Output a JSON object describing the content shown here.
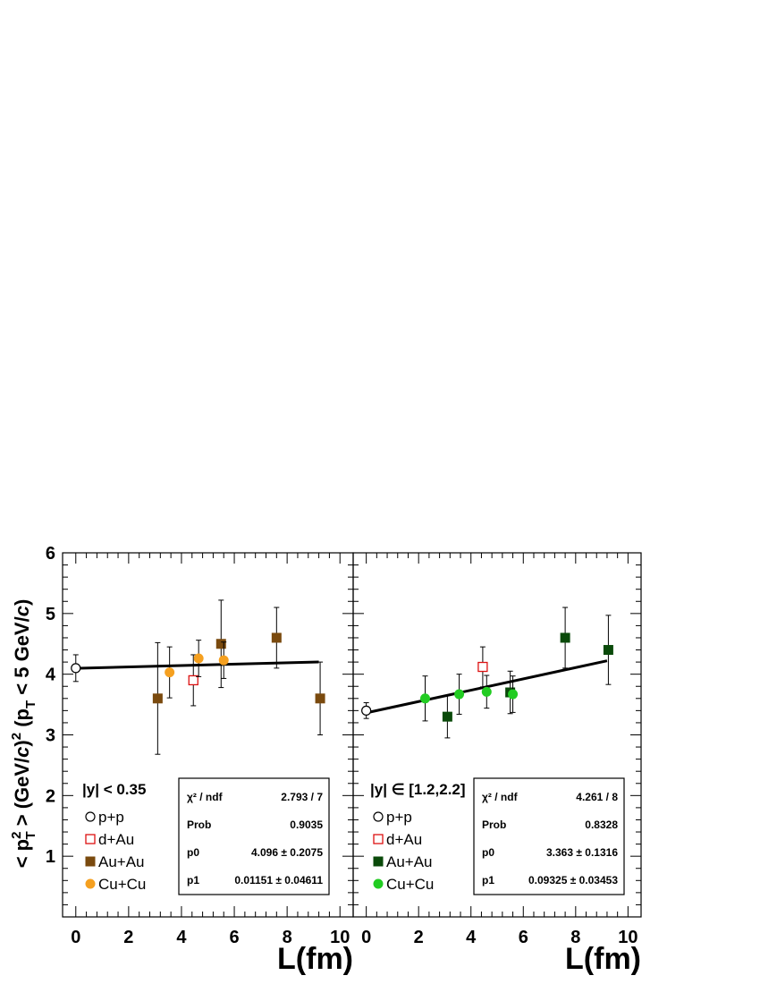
{
  "chart_data": [
    {
      "type": "scatter",
      "panel": "left",
      "x_label": "L(fm)",
      "y_label": "< p_T^2 > (GeV/c)^2 (p_T < 5 GeV/c)",
      "y_label_parts": {
        "lt": "< p",
        "sup1": "2",
        "sub1": "T",
        "mid": " > (GeV/",
        "c1": "c",
        "close": ")",
        "sup2": "2",
        "open": " (p",
        "sub2": "T",
        "rest": " < 5 GeV/",
        "c2": "c",
        "end": ")"
      },
      "x_ticks": [
        "0",
        "2",
        "4",
        "6",
        "8",
        "10"
      ],
      "y_ticks": [
        "1",
        "2",
        "3",
        "4",
        "5",
        "6"
      ],
      "xlim": [
        -0.5,
        10.5
      ],
      "ylim": [
        0,
        6
      ],
      "legend": {
        "header": "|y| < 0.35",
        "entries": [
          {
            "key": "pp",
            "label": "p+p",
            "marker": "open-circle",
            "color": "#000000"
          },
          {
            "key": "dAu",
            "label": "d+Au",
            "marker": "open-square",
            "color": "#dd1111"
          },
          {
            "key": "AuAu",
            "label": "Au+Au",
            "marker": "filled-square",
            "color": "#7a4a0e"
          },
          {
            "key": "CuCu",
            "label": "Cu+Cu",
            "marker": "filled-circle",
            "color": "#f5a020"
          }
        ]
      },
      "series": [
        {
          "key": "pp",
          "points": [
            {
              "x": 0.0,
              "y": 4.1,
              "err": 0.22
            }
          ]
        },
        {
          "key": "dAu",
          "points": [
            {
              "x": 4.45,
              "y": 3.9,
              "err": 0.42
            }
          ]
        },
        {
          "key": "AuAu",
          "points": [
            {
              "x": 3.1,
              "y": 3.6,
              "err": 0.92
            },
            {
              "x": 5.5,
              "y": 4.5,
              "err": 0.72
            },
            {
              "x": 7.6,
              "y": 4.6,
              "err": 0.5
            },
            {
              "x": 9.25,
              "y": 3.6,
              "err": 0.6
            }
          ]
        },
        {
          "key": "CuCu",
          "points": [
            {
              "x": 3.55,
              "y": 4.03,
              "err": 0.42
            },
            {
              "x": 4.65,
              "y": 4.26,
              "err": 0.3
            },
            {
              "x": 5.6,
              "y": 4.23,
              "err": 0.3
            }
          ]
        }
      ],
      "fit": {
        "x0": 0.0,
        "x1": 9.2,
        "p0": 4.096,
        "p1": 0.01151
      },
      "stats": [
        {
          "key": "χ² / ndf",
          "value": "2.793 / 7"
        },
        {
          "key": "Prob",
          "value": "0.9035"
        },
        {
          "key": "p0",
          "value": "4.096 ± 0.2075"
        },
        {
          "key": "p1",
          "value": "0.01151 ± 0.04611"
        }
      ]
    },
    {
      "type": "scatter",
      "panel": "right",
      "x_label": "L(fm)",
      "x_ticks": [
        "0",
        "2",
        "4",
        "6",
        "8",
        "10"
      ],
      "xlim": [
        -0.5,
        10.5
      ],
      "ylim": [
        0,
        6
      ],
      "legend": {
        "header": "|y| ∈ [1.2,2.2]",
        "entries": [
          {
            "key": "pp",
            "label": "p+p",
            "marker": "open-circle",
            "color": "#000000"
          },
          {
            "key": "dAu",
            "label": "d+Au",
            "marker": "open-square",
            "color": "#dd1111"
          },
          {
            "key": "AuAu",
            "label": "Au+Au",
            "marker": "filled-square",
            "color": "#0a4a0a"
          },
          {
            "key": "CuCu",
            "label": "Cu+Cu",
            "marker": "filled-circle",
            "color": "#22cc22"
          }
        ]
      },
      "series": [
        {
          "key": "pp",
          "points": [
            {
              "x": 0.0,
              "y": 3.4,
              "err": 0.13
            }
          ]
        },
        {
          "key": "dAu",
          "points": [
            {
              "x": 4.45,
              "y": 4.12,
              "err": 0.33
            }
          ]
        },
        {
          "key": "AuAu",
          "points": [
            {
              "x": 3.1,
              "y": 3.3,
              "err": 0.35
            },
            {
              "x": 5.5,
              "y": 3.7,
              "err": 0.35
            },
            {
              "x": 7.6,
              "y": 4.6,
              "err": 0.5
            },
            {
              "x": 9.25,
              "y": 4.4,
              "err": 0.57
            }
          ]
        },
        {
          "key": "CuCu",
          "points": [
            {
              "x": 2.25,
              "y": 3.6,
              "err": 0.37
            },
            {
              "x": 3.55,
              "y": 3.67,
              "err": 0.33
            },
            {
              "x": 4.6,
              "y": 3.71,
              "err": 0.27
            },
            {
              "x": 5.6,
              "y": 3.67,
              "err": 0.3
            }
          ]
        }
      ],
      "fit": {
        "x0": 0.0,
        "x1": 9.2,
        "p0": 3.363,
        "p1": 0.09325
      },
      "stats": [
        {
          "key": "χ² / ndf",
          "value": "4.261 / 8"
        },
        {
          "key": "Prob",
          "value": "0.8328"
        },
        {
          "key": "p0",
          "value": "3.363 ± 0.1316"
        },
        {
          "key": "p1",
          "value": "0.09325 ± 0.03453"
        }
      ]
    }
  ]
}
